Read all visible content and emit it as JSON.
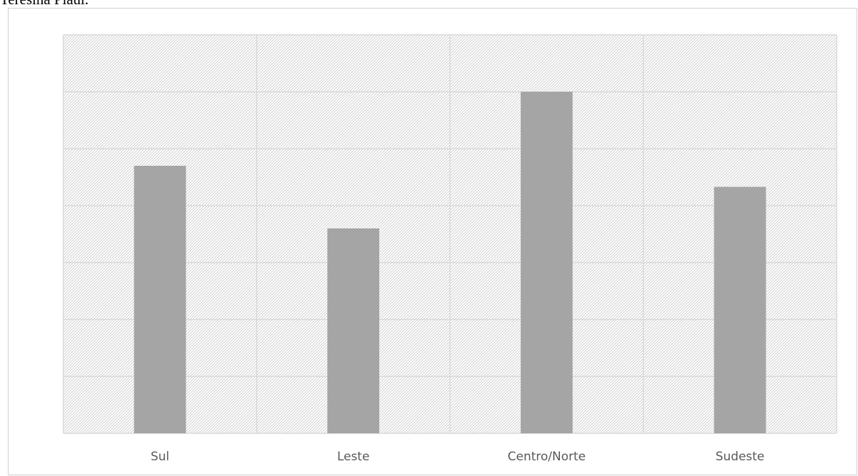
{
  "caption": "Teresina Piauí.",
  "chart_data": {
    "type": "bar",
    "categories": [
      "Sul",
      "Leste",
      "Centro/Norte",
      "Sudeste"
    ],
    "values": [
      4.7,
      3.6,
      6.0,
      4.33
    ],
    "ylim": [
      0,
      7
    ],
    "grid": true,
    "colors": {
      "bar": "#a5a5a5",
      "grid": "#d9d9d9",
      "hatch": "#c8c8c8"
    }
  }
}
